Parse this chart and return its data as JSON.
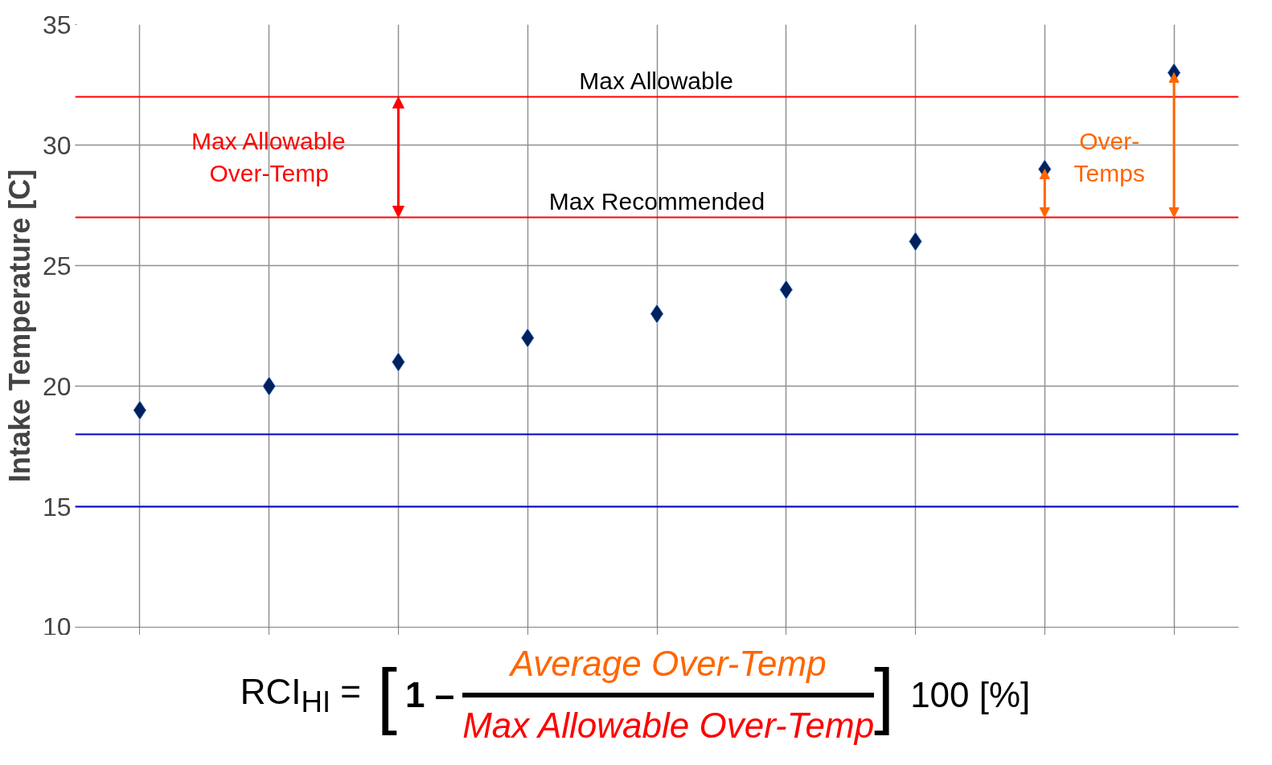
{
  "chart_data": {
    "type": "scatter",
    "ylabel": "Intake Temperature [C]",
    "categories": [
      null,
      null,
      null,
      null,
      null,
      null,
      null,
      null,
      null
    ],
    "series": [
      {
        "color": "#002060",
        "values": [
          19,
          20,
          21,
          22,
          23,
          24,
          26,
          29,
          33
        ]
      }
    ],
    "marker": "diamond",
    "ylim": [
      10,
      35
    ],
    "yticks": [
      10,
      15,
      20,
      25,
      30,
      35
    ],
    "grid": true,
    "tick_labels": "y",
    "ref_lines": [
      {
        "axis": "y",
        "value": 32,
        "label": "Max Allowable",
        "color": "#ff0000"
      },
      {
        "axis": "y",
        "value": 27,
        "label": "Max Recommended",
        "color": "#ff0000"
      },
      {
        "axis": "y",
        "value": 18,
        "color": "#0000c0"
      },
      {
        "axis": "y",
        "value": 15,
        "color": "#0000c0"
      }
    ],
    "annotations": [
      "Max Allowable\nOver-Temp",
      "Over-\nTemps",
      "RCI$_{HI}$ =",
      "[",
      "1 –",
      "Average Over-Temp",
      "Max Allowable Over-Temp",
      "]",
      "100 [%]"
    ]
  }
}
